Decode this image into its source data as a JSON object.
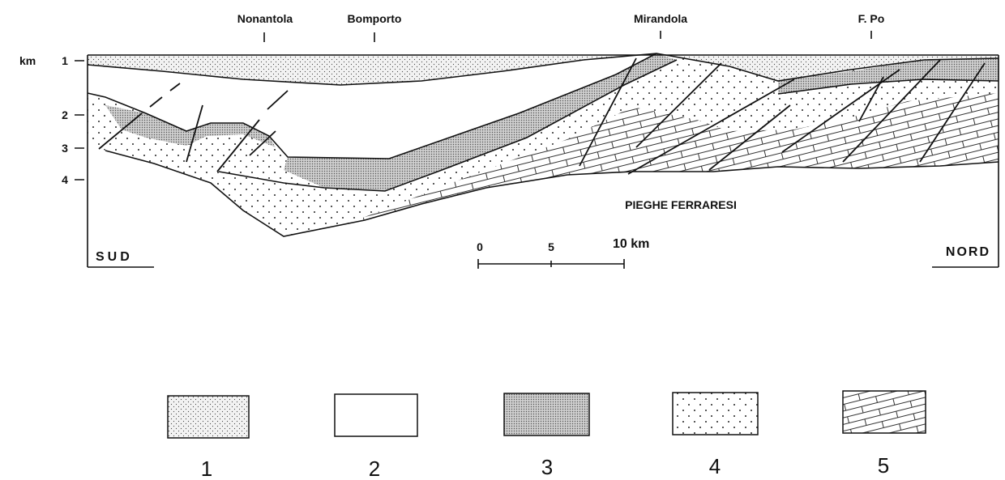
{
  "locations": [
    "Nonantola",
    "Bomporto",
    "Mirandola",
    "F. Po"
  ],
  "depth_axis": {
    "unit": "km",
    "labels": [
      "1",
      "2",
      "3",
      "4"
    ]
  },
  "directions": {
    "south": "SUD",
    "north": "NORD"
  },
  "structure_label": "PIEGHE FERRARESI",
  "scale_bar": {
    "labels": [
      "0",
      "5",
      "10 km"
    ]
  },
  "legend": [
    "1",
    "2",
    "3",
    "4",
    "5"
  ]
}
